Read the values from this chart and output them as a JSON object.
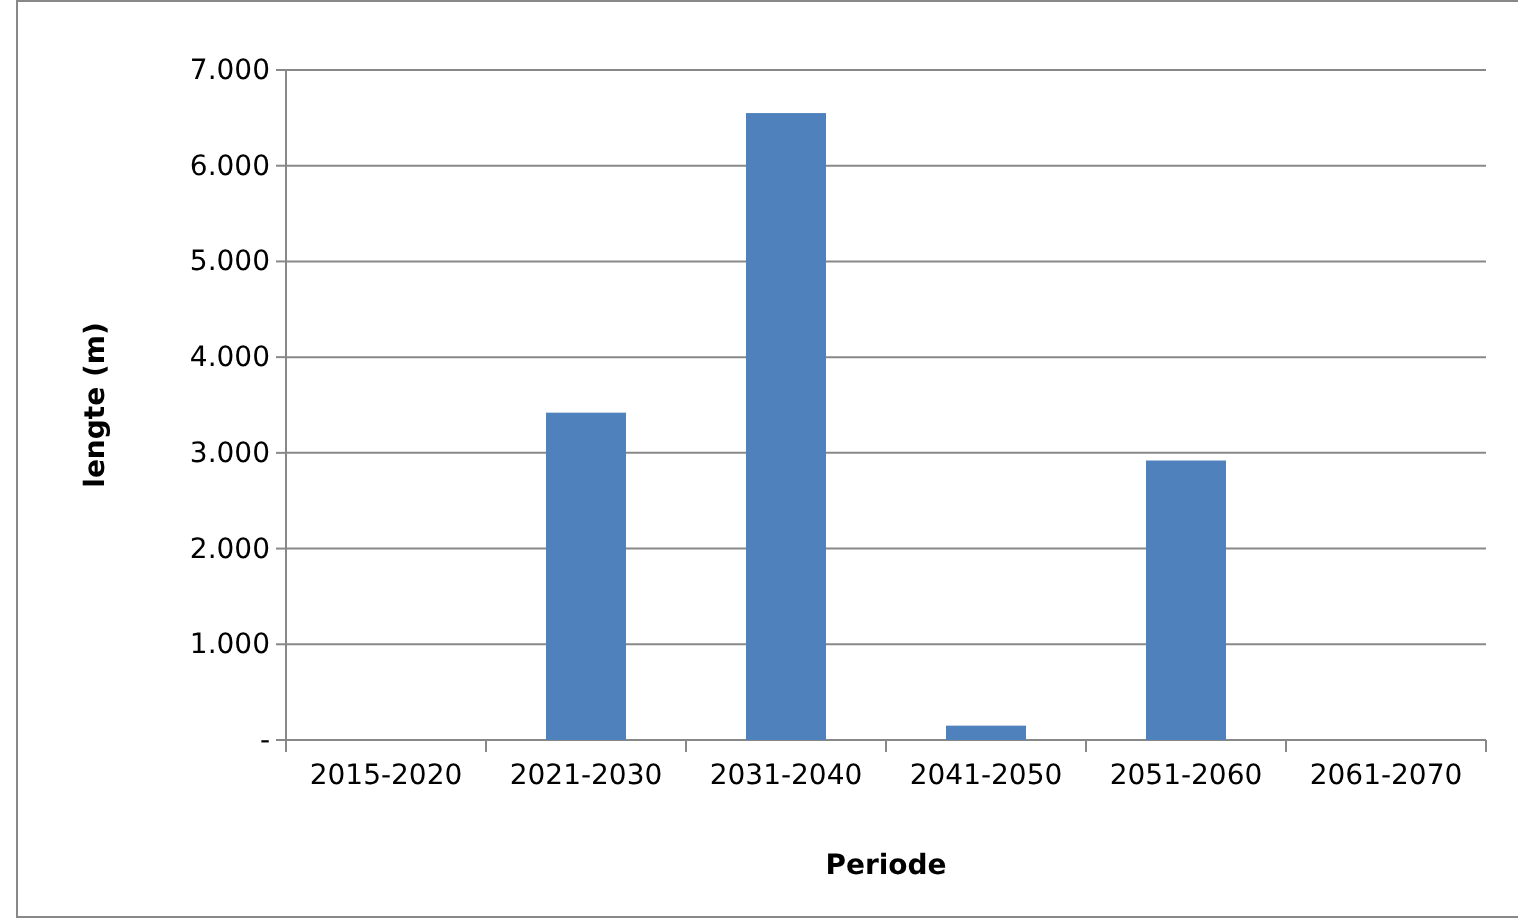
{
  "chart_data": {
    "type": "bar",
    "xlabel": "Periode",
    "ylabel": "lengte (m)",
    "categories": [
      "2015-2020",
      "2021-2030",
      "2031-2040",
      "2041-2050",
      "2051-2060",
      "2061-2070"
    ],
    "values": [
      0,
      3420,
      6550,
      150,
      2920,
      0
    ],
    "color": "#4f81bd",
    "ylim": [
      0,
      7000
    ],
    "yticks": [
      {
        "value": 0,
        "label": "-"
      },
      {
        "value": 1000,
        "label": "1.000"
      },
      {
        "value": 2000,
        "label": "2.000"
      },
      {
        "value": 3000,
        "label": "3.000"
      },
      {
        "value": 4000,
        "label": "4.000"
      },
      {
        "value": 5000,
        "label": "5.000"
      },
      {
        "value": 6000,
        "label": "6.000"
      },
      {
        "value": 7000,
        "label": "7.000"
      }
    ],
    "grid": "y"
  }
}
